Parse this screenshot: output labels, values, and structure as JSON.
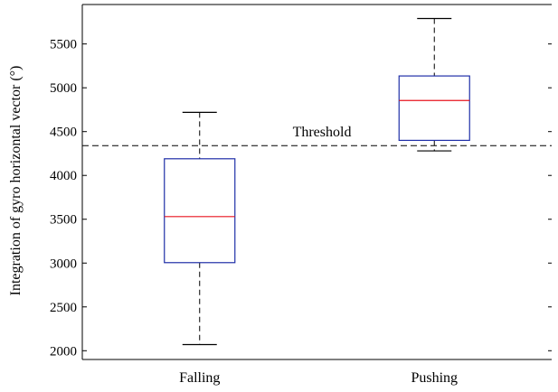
{
  "chart_data": {
    "type": "box",
    "ylabel": "Integration of gyro horizontal vector (°)",
    "xlabel": "",
    "ylim": [
      1900,
      5950
    ],
    "y_ticks": [
      2000,
      2500,
      3000,
      3500,
      4000,
      4500,
      5000,
      5500
    ],
    "categories": [
      "Falling",
      "Pushing"
    ],
    "boxes": [
      {
        "name": "Falling",
        "min": 2070,
        "q1": 3005,
        "median": 3530,
        "q3": 4190,
        "max": 4720
      },
      {
        "name": "Pushing",
        "min": 4280,
        "q1": 4400,
        "median": 4855,
        "q3": 5135,
        "max": 5790
      }
    ],
    "threshold": {
      "value": 4340,
      "label": "Threshold"
    },
    "colors": {
      "box": "#1f2fa8",
      "median": "#e8141e",
      "whisker": "#000000",
      "threshold": "#000000"
    },
    "grid": false
  }
}
